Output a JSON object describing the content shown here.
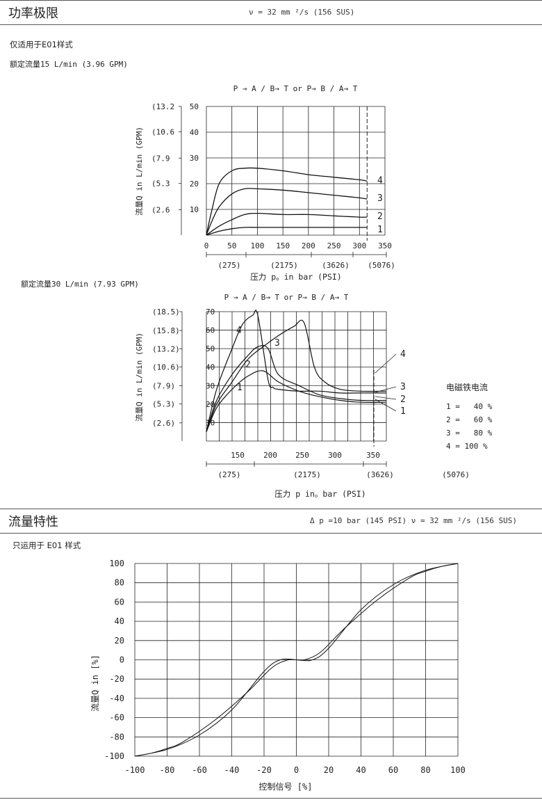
{
  "section1": {
    "title": "功率极限",
    "condition": "ν = 32 mm ²/s  (156 SUS)",
    "note": "仅适用于E01样式",
    "chart1_caption": "额定流量15 L/min (3.96 GPM)",
    "chart2_caption": "额定流量30 L/min (7.93 GPM)"
  },
  "section2": {
    "title": "流量特性",
    "condition": "Δ p =10 bar (145 PSI) ν = 32 mm ²/s  (156 SUS)",
    "note": "只运用于 E01 样式"
  },
  "legend": {
    "title": "电磁铁电流",
    "items": [
      "1 =   40 %",
      "2 =   60 %",
      "3 =   80 %",
      "4 = 100 %"
    ]
  },
  "chart_data": [
    {
      "type": "line",
      "subtitle": "P → A / B→ T  or  P→ B / A→ T",
      "xlabel": "压力 p。in bar (PSI)",
      "ylabel": "流量Q in L/min (GPM)",
      "xlim": [
        0,
        350
      ],
      "ylim": [
        0,
        50
      ],
      "x_ticks": [
        "0",
        "50",
        "100",
        "150",
        "200",
        "250",
        "300",
        "350"
      ],
      "x_secondary_ticks": [
        "(275)",
        "(2175)",
        "(3626)",
        "(5076)"
      ],
      "y_ticks": [
        "10",
        "20",
        "30",
        "40",
        "50"
      ],
      "y_secondary_ticks": [
        "(2.6",
        "(5.3",
        "(7.9",
        "(10.6",
        "(13.2"
      ],
      "grid": true,
      "dashed_limit_x": 315,
      "series": [
        {
          "name": "1",
          "x": [
            0,
            25,
            50,
            75,
            100,
            150,
            200,
            250,
            300,
            315
          ],
          "y": [
            0,
            1.5,
            2.5,
            3,
            3,
            3,
            3,
            3,
            3,
            3
          ]
        },
        {
          "name": "2",
          "x": [
            0,
            25,
            50,
            75,
            100,
            150,
            200,
            250,
            300,
            315
          ],
          "y": [
            0,
            3.5,
            6,
            8,
            8.5,
            8,
            8,
            7.5,
            7,
            7
          ]
        },
        {
          "name": "3",
          "x": [
            0,
            10,
            25,
            50,
            75,
            100,
            150,
            200,
            250,
            300,
            315
          ],
          "y": [
            0,
            5,
            11,
            16,
            18,
            18,
            17.5,
            16.5,
            15.5,
            14.5,
            14
          ]
        },
        {
          "name": "4",
          "x": [
            0,
            10,
            25,
            50,
            75,
            100,
            150,
            200,
            250,
            300,
            315
          ],
          "y": [
            0,
            9,
            20,
            25,
            26,
            26,
            25,
            23.5,
            22.5,
            21.5,
            21
          ]
        }
      ]
    },
    {
      "type": "line",
      "subtitle": "P → A / B→ T  or  P→ B / A→ T",
      "xlabel": "压力 p in。bar (PSI)",
      "ylabel": "流量Q in L/min (GPM)",
      "xlim": [
        0,
        350
      ],
      "ylim": [
        0,
        70
      ],
      "x_ticks": [
        "150",
        "200",
        "250",
        "300",
        "350"
      ],
      "x_secondary_ticks": [
        "(275)",
        "(2175)",
        "(3626)",
        "(5076)"
      ],
      "y_ticks": [
        "10",
        "20",
        "30",
        "40",
        "50",
        "60",
        "70"
      ],
      "y_secondary_ticks": [
        "(2.6)",
        "(5.3)",
        "(7.9)",
        "(10.6)",
        "(13.2)",
        "(15.8)",
        "(18.5)"
      ],
      "grid": true,
      "dashed_limit_x": 350,
      "series": [
        {
          "name": "1",
          "x": [
            0,
            20,
            50,
            80,
            110,
            140,
            180,
            220,
            260,
            300,
            350
          ],
          "y": [
            5,
            18,
            28,
            35,
            38,
            32,
            27,
            24,
            22,
            21,
            21
          ]
        },
        {
          "name": "2",
          "x": [
            0,
            20,
            50,
            80,
            100,
            120,
            140,
            180,
            220,
            260,
            300,
            350
          ],
          "y": [
            5,
            22,
            36,
            46,
            51,
            50,
            36,
            30,
            25,
            23,
            22,
            22
          ]
        },
        {
          "name": "3",
          "x": [
            0,
            20,
            50,
            80,
            110,
            140,
            170,
            190,
            210,
            230,
            260,
            300,
            350
          ],
          "y": [
            5,
            20,
            32,
            44,
            51,
            57,
            62,
            64,
            40,
            32,
            28,
            27,
            27
          ]
        },
        {
          "name": "4",
          "x": [
            0,
            20,
            50,
            70,
            90,
            100,
            120,
            130,
            140,
            180,
            220,
            260,
            300,
            350
          ],
          "y": [
            5,
            28,
            50,
            63,
            68,
            68,
            33,
            29,
            28,
            27,
            27,
            26,
            26,
            26
          ]
        }
      ]
    },
    {
      "type": "line",
      "xlabel": "控制信号 [%]",
      "ylabel": "流量Q in [%]",
      "xlim": [
        -100,
        100
      ],
      "ylim": [
        -100,
        100
      ],
      "x_ticks": [
        "-100",
        "-80",
        "-60",
        "-40",
        "-20",
        "0",
        "20",
        "40",
        "60",
        "80",
        "100"
      ],
      "y_ticks": [
        "100",
        "80",
        "60",
        "40",
        "20",
        "0",
        "-20",
        "-40",
        "-60",
        "-80",
        "-100"
      ],
      "grid": true,
      "series": [
        {
          "x": [
            -100,
            -80,
            -60,
            -40,
            -20,
            -10,
            0,
            5,
            15,
            30,
            50,
            70,
            80,
            90,
            100
          ],
          "y": [
            -100,
            -93,
            -78,
            -52,
            -12,
            0,
            0,
            0,
            8,
            33,
            62,
            85,
            92,
            97,
            100
          ]
        },
        {
          "x": [
            -100,
            -90,
            -80,
            -70,
            -50,
            -30,
            -15,
            -5,
            0,
            10,
            20,
            40,
            60,
            80,
            100
          ],
          "y": [
            -100,
            -97,
            -92,
            -85,
            -62,
            -33,
            -8,
            0,
            0,
            0,
            12,
            52,
            78,
            93,
            100
          ]
        }
      ]
    }
  ]
}
